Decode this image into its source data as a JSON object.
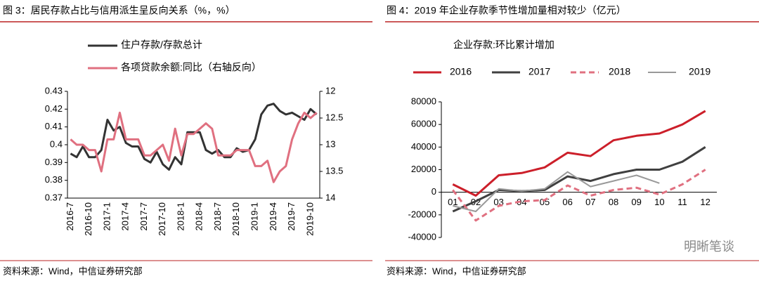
{
  "chart_data": [
    {
      "type": "line",
      "title": "图 3：居民存款占比与信用派生呈反向关系（%，%）",
      "source": "资料来源：Wind，中信证券研究部",
      "legend": "top-left",
      "categories": [
        "2016-7",
        null,
        null,
        "2016-10",
        null,
        null,
        "2017-1",
        null,
        null,
        "2017-4",
        null,
        null,
        "2017-7",
        null,
        null,
        "2017-10",
        null,
        null,
        "2018-1",
        null,
        null,
        "2018-4",
        null,
        null,
        "2018-7",
        null,
        null,
        "2018-10",
        null,
        null,
        "2019-1",
        null,
        null,
        "2019-4",
        null,
        null,
        "2019-7",
        null,
        null,
        "2019-10",
        null
      ],
      "ylim": [
        0.37,
        0.43
      ],
      "yticks": [
        0.37,
        0.38,
        0.39,
        0.4,
        0.41,
        0.42,
        0.43
      ],
      "y2lim": [
        14,
        12
      ],
      "y2ticks": [
        12,
        12.5,
        13,
        13.5,
        14
      ],
      "series": [
        {
          "name": "住户存款/存款总计",
          "color": "#333333",
          "width": 3,
          "values": [
            0.395,
            0.393,
            0.399,
            0.393,
            0.393,
            0.397,
            0.414,
            0.408,
            0.41,
            0.401,
            0.399,
            0.399,
            0.392,
            0.39,
            0.396,
            0.389,
            0.386,
            0.393,
            0.389,
            0.407,
            0.407,
            0.407,
            0.397,
            0.395,
            0.397,
            0.393,
            0.393,
            0.398,
            0.396,
            0.397,
            0.403,
            0.417,
            0.422,
            0.423,
            0.419,
            0.417,
            0.418,
            0.416,
            0.414,
            0.42,
            0.417
          ]
        },
        {
          "name": "各项贷款余额:同比（右轴反向）",
          "color": "#e07080",
          "width": 3,
          "axis": "y2",
          "values": [
            12.9,
            13.0,
            13.0,
            13.1,
            13.1,
            13.5,
            12.9,
            12.9,
            12.4,
            12.9,
            12.9,
            12.9,
            13.2,
            13.2,
            13.1,
            13.0,
            13.3,
            12.7,
            13.2,
            12.8,
            12.8,
            12.7,
            12.6,
            12.7,
            13.2,
            13.2,
            13.2,
            13.1,
            13.1,
            13.1,
            13.4,
            13.4,
            13.3,
            13.7,
            13.5,
            13.4,
            12.9,
            12.6,
            12.4,
            12.5,
            12.4
          ]
        }
      ]
    },
    {
      "type": "line",
      "title": "图 4：2019 年企业存款季节性增加量相对较少（亿元）",
      "subtitle": "企业存款:环比累计增加",
      "source": "资料来源：Wind，中信证券研究部",
      "legend": "top",
      "categories": [
        "01",
        "02",
        "03",
        "04",
        "05",
        "06",
        "07",
        "08",
        "09",
        "10",
        "11",
        "12"
      ],
      "ylim": [
        -40000,
        80000
      ],
      "yticks": [
        -40000,
        -20000,
        0,
        20000,
        40000,
        60000,
        80000
      ],
      "series": [
        {
          "name": "2016",
          "color": "#cc1f2a",
          "width": 3,
          "values": [
            7000,
            -3000,
            15000,
            17000,
            22000,
            35000,
            32000,
            46000,
            50000,
            52000,
            60000,
            72000
          ]
        },
        {
          "name": "2017",
          "color": "#404040",
          "width": 3,
          "values": [
            -17000,
            -8000,
            2000,
            1000,
            2000,
            14000,
            10000,
            16000,
            20000,
            20000,
            27000,
            40000
          ]
        },
        {
          "name": "2018",
          "color": "#e07080",
          "width": 3,
          "dashed": true,
          "values": [
            2000,
            -25000,
            -12000,
            -8000,
            -7000,
            6000,
            -3000,
            2000,
            4000,
            -2000,
            7000,
            20000
          ]
        },
        {
          "name": "2019",
          "color": "#999999",
          "width": 2,
          "values": [
            -12000,
            -17000,
            3000,
            1000,
            3000,
            18000,
            5000,
            10000,
            15000,
            8000,
            null,
            null
          ]
        }
      ]
    }
  ],
  "watermark": "明晰笔谈"
}
